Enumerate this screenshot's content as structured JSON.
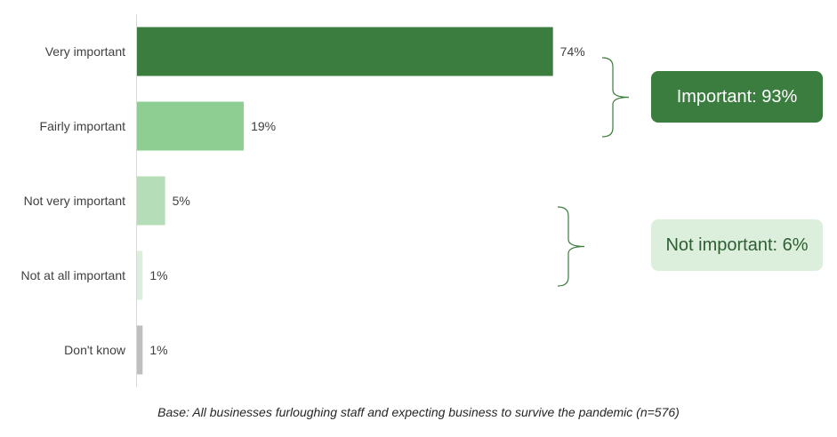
{
  "chart_data": {
    "type": "bar",
    "orientation": "horizontal",
    "categories": [
      "Very important",
      "Fairly important",
      "Not very important",
      "Not at all important",
      "Don't know"
    ],
    "values": [
      74,
      19,
      5,
      1,
      1
    ],
    "value_labels": [
      "74%",
      "19%",
      "5%",
      "1%",
      "1%"
    ],
    "bar_colors": [
      "#3a7d3f",
      "#8fce93",
      "#b5ddb7",
      "#dcefdd",
      "#bfbfbf"
    ],
    "xlim": [
      0,
      100
    ],
    "axis_color": "#d9d9d9",
    "groups": [
      {
        "label": "Important: 93%",
        "categories": [
          "Very important",
          "Fairly important"
        ],
        "background": "#3a7d3f",
        "text_color": "#ffffff"
      },
      {
        "label": "Not important: 6%",
        "categories": [
          "Not very important",
          "Not at all important"
        ],
        "background": "#dcefdd",
        "text_color": "#2e5e32"
      }
    ],
    "bracket_color": "#3a7d3f"
  },
  "footnote": "Base: All businesses furloughing staff and expecting business to survive the pandemic (n=576)"
}
